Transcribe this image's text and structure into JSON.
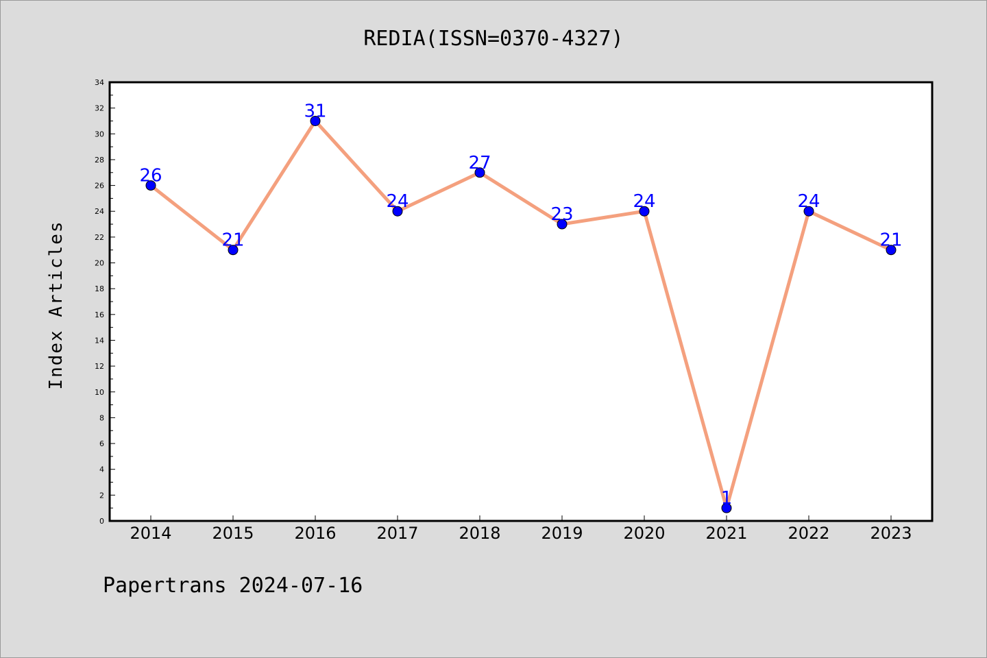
{
  "chart_data": {
    "type": "line",
    "title": "REDIA(ISSN=0370-4327)",
    "xlabel": "",
    "ylabel": "Index Articles",
    "categories": [
      "2014",
      "2015",
      "2016",
      "2017",
      "2018",
      "2019",
      "2020",
      "2021",
      "2022",
      "2023"
    ],
    "values": [
      26,
      21,
      31,
      24,
      27,
      23,
      24,
      1,
      24,
      21
    ],
    "ylim": [
      0,
      34
    ],
    "y_ticks": [
      0,
      2,
      4,
      6,
      8,
      10,
      12,
      14,
      16,
      18,
      20,
      22,
      24,
      26,
      28,
      30,
      32,
      34
    ],
    "grid": false,
    "line_color": "#f4a07e",
    "marker_color": "#0000ff",
    "label_color": "#0000ff",
    "footer": "Papertrans 2024-07-16"
  }
}
